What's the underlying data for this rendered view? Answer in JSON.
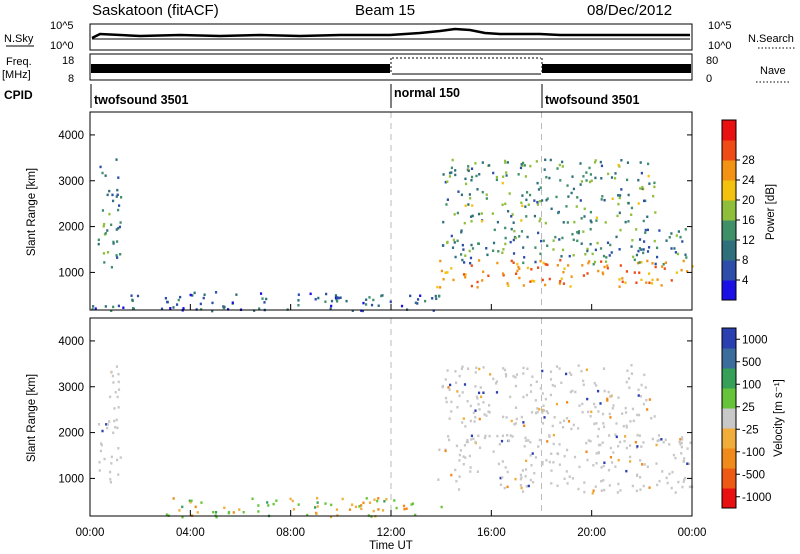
{
  "header": {
    "station": "Saskatoon (fitACF)",
    "beam": "Beam 15",
    "date": "08/Dec/2012"
  },
  "labels": {
    "nsky": "N.Sky",
    "freq": "Freq.",
    "freq_unit": "[MHz]",
    "cpid": "CPID",
    "nsearch": "N.Search",
    "nave": "Nave",
    "nsky_ticks": [
      "10^5",
      "10^0"
    ],
    "nsearch_ticks": [
      "10^5",
      "10^0"
    ],
    "freq_ticks": [
      "18",
      "8"
    ],
    "nave_ticks": [
      "80",
      "0"
    ]
  },
  "cpid_segments": [
    {
      "label": "twofsound 3501",
      "start": "00:00",
      "end": "12:00"
    },
    {
      "label": "normal 150",
      "start": "12:00",
      "end": "18:00"
    },
    {
      "label": "twofsound 3501",
      "start": "18:00",
      "end": "24:00"
    }
  ],
  "chart_data": [
    {
      "type": "heatmap",
      "title": "Power",
      "ylabel": "Slant Range [km]",
      "xlabel": "Time UT",
      "xlim": [
        "00:00",
        "24:00"
      ],
      "ylim": [
        180,
        4500
      ],
      "x_ticks": [
        "00:00",
        "04:00",
        "08:00",
        "12:00",
        "16:00",
        "20:00",
        "00:00"
      ],
      "y_ticks": [
        1000,
        2000,
        3000,
        4000
      ],
      "colorbar": {
        "label": "Power [dB]",
        "ticks": [
          4,
          8,
          12,
          16,
          20,
          24,
          28
        ],
        "colors": [
          "#1a10e6",
          "#2c4da8",
          "#2f6f7c",
          "#3f8f68",
          "#8fbf3a",
          "#f2c20f",
          "#f29314",
          "#ef4b16",
          "#e81010"
        ]
      },
      "regions": [
        {
          "t0": 0.3,
          "t1": 1.2,
          "r0": 900,
          "r1": 3500,
          "value": 12
        },
        {
          "t0": 0.0,
          "t1": 14.0,
          "r0": 180,
          "r1": 600,
          "value": 8
        },
        {
          "t0": 13.8,
          "t1": 24.0,
          "r0": 700,
          "r1": 1300,
          "value": 24
        },
        {
          "t0": 14.0,
          "t1": 24.0,
          "r0": 1200,
          "r1": 2000,
          "value": 12
        },
        {
          "t0": 14.0,
          "t1": 22.5,
          "r0": 2100,
          "r1": 3500,
          "value": 14
        }
      ]
    },
    {
      "type": "heatmap",
      "title": "Velocity",
      "ylabel": "Slant Range [km]",
      "xlabel": "Time UT",
      "xlim": [
        "00:00",
        "24:00"
      ],
      "ylim": [
        180,
        4500
      ],
      "x_ticks": [
        "00:00",
        "04:00",
        "08:00",
        "12:00",
        "16:00",
        "20:00",
        "00:00"
      ],
      "y_ticks": [
        1000,
        2000,
        3000,
        4000
      ],
      "colorbar": {
        "label": "Velocity [m s⁻¹]",
        "ticks": [
          "1000",
          "500",
          "100",
          "25",
          "-25",
          "-100",
          "-500",
          "-1000"
        ],
        "colors": [
          "#2a3fb0",
          "#3a6d9c",
          "#37a058",
          "#66c43a",
          "#c8c8c8",
          "#f0ad3a",
          "#f08a1a",
          "#ee5a14",
          "#e81010"
        ]
      },
      "regions": [
        {
          "t0": 0.3,
          "t1": 1.2,
          "r0": 900,
          "r1": 3500,
          "value": 0
        },
        {
          "t0": 3.0,
          "t1": 14.0,
          "r0": 180,
          "r1": 600,
          "value": 80
        },
        {
          "t0": 13.8,
          "t1": 24.0,
          "r0": 700,
          "r1": 2000,
          "value": 0
        },
        {
          "t0": 14.0,
          "t1": 22.5,
          "r0": 2100,
          "r1": 3500,
          "value": 0
        }
      ]
    }
  ]
}
